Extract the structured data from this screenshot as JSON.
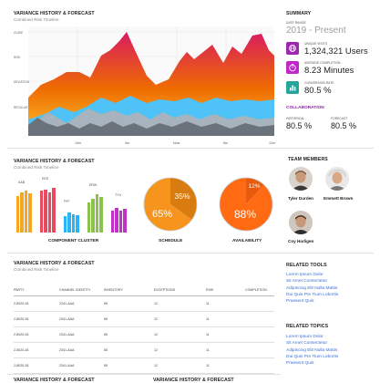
{
  "main_chart": {
    "title": "VARIANCE HISTORY & FORECAST",
    "subtitle": "Combined Risk Timeline",
    "y_labels": [
      "GUIDE",
      "RISK",
      "DEVIATION",
      "REGULAR"
    ],
    "x_labels": [
      "10m",
      "4m",
      "Now",
      "6m",
      "12m"
    ]
  },
  "summary": {
    "title": "SUMMARY",
    "date_label": "DATE RANGE",
    "date_value": "2019 - Present",
    "stats": [
      {
        "label": "UNIQUE VISITS",
        "value": "1,324,321 Users",
        "icon": "globe-icon",
        "color": "#9c27b0"
      },
      {
        "label": "AVERAGE COMPLETION",
        "value": "8.23 Minutes",
        "icon": "timer-icon",
        "color": "#c026c9"
      },
      {
        "label": "CONVERSION RATE",
        "value": "80.5 %",
        "icon": "chart-icon",
        "color": "#26a69a"
      }
    ]
  },
  "collaboration": {
    "title": "COLLABORATION",
    "historical_label": "HISTORICAL",
    "historical_value": "80.5 %",
    "forecast_label": "FORECAST",
    "forecast_value": "80.5 %"
  },
  "cluster_section": {
    "title": "VARIANCE HISTORY & FORECAST",
    "subtitle": "Combined Risk Timeline",
    "groups": [
      {
        "label": "AAB",
        "colors": [
          "#f5a623",
          "#f5a623",
          "#f5a623",
          "#f5a623"
        ]
      },
      {
        "label": "EEE",
        "colors": [
          "#e84a5f",
          "#e84a5f",
          "#e84a5f",
          "#e84a5f"
        ]
      },
      {
        "label": "FFF",
        "colors": [
          "#29b6f6",
          "#29b6f6",
          "#29b6f6",
          "#29b6f6"
        ]
      },
      {
        "label": "ERW",
        "colors": [
          "#8bc34a",
          "#8bc34a",
          "#8bc34a",
          "#8bc34a"
        ]
      },
      {
        "label": "TYX",
        "colors": [
          "#c22fc9",
          "#c22fc9",
          "#c22fc9",
          "#c22fc9"
        ]
      }
    ],
    "cluster_label": "COMPONENT CLUSTER",
    "schedule_label": "SCHEDULE",
    "availability_label": "AVAILABILITY"
  },
  "chart_data": [
    {
      "type": "bar",
      "categories": [
        "AAB",
        "EEE",
        "FFF",
        "ERW",
        "TYX"
      ],
      "series": [
        {
          "values": [
            0.8,
            0.92,
            0.36,
            0.67,
            0.48
          ]
        },
        {
          "values": [
            0.88,
            0.95,
            0.44,
            0.74,
            0.55
          ]
        },
        {
          "values": [
            0.93,
            0.88,
            0.4,
            0.84,
            0.48
          ]
        },
        {
          "values": [
            0.86,
            0.98,
            0.38,
            0.78,
            0.52
          ]
        }
      ]
    },
    {
      "type": "pie",
      "title": "SCHEDULE",
      "labels": [
        "65%",
        "35%"
      ],
      "values": [
        65,
        35
      ],
      "colors": [
        "#f7941d",
        "#d97c10"
      ]
    },
    {
      "type": "pie",
      "title": "AVAILABILITY",
      "labels": [
        "88%",
        "12%"
      ],
      "values": [
        88,
        12
      ],
      "colors": [
        "#ff6a13",
        "#e85a0c"
      ]
    }
  ],
  "team": {
    "title": "TEAM MEMBERS",
    "members": [
      "Tyler Durden",
      "Emmett Brown",
      "Coy Harligen"
    ]
  },
  "table_section": {
    "title": "VARIANCE HISTORY & FORECAST",
    "subtitle": "Combined Risk Timeline",
    "headers": [
      "PARTY",
      "CHANNEL IDENTITY",
      "INVENTORY",
      "EXCEPTIONS",
      "RISK",
      "COMPLETION"
    ],
    "rows": [
      [
        "2-8020-28",
        "2341-AAA",
        "65",
        "12",
        "11",
        ""
      ],
      [
        "2-8020-28",
        "2341-AAA",
        "65",
        "12",
        "11",
        ""
      ],
      [
        "2-8020-28",
        "2341-AAA",
        "65",
        "12",
        "11",
        ""
      ],
      [
        "2-8020-28",
        "2341-AAA",
        "65",
        "12",
        "11",
        ""
      ],
      [
        "2-8020-28",
        "2341-AAA",
        "65",
        "12",
        "11",
        ""
      ]
    ]
  },
  "related_tools": {
    "title": "RELATED TOOLS",
    "links": [
      "Lorem Ipsum Dolor",
      "Sit Amet Consectetur",
      "Adipiscing Elit Nulla Mattis",
      "Dui Quis Pre Tium Lobortis",
      "Praesent Quis"
    ]
  },
  "related_topics": {
    "title": "RELATED TOPICS",
    "links": [
      "Lorem Ipsum Dolor",
      "Sit Amet Consectetur",
      "Adipiscing Elit Nulla Mattis",
      "Dui Quis Pre Tium Lobortis",
      "Praesent Quis"
    ]
  },
  "footer_titles": [
    "VARIANCE HISTORY & FORECAST",
    "VARIANCE HISTORY & FORECAST"
  ]
}
